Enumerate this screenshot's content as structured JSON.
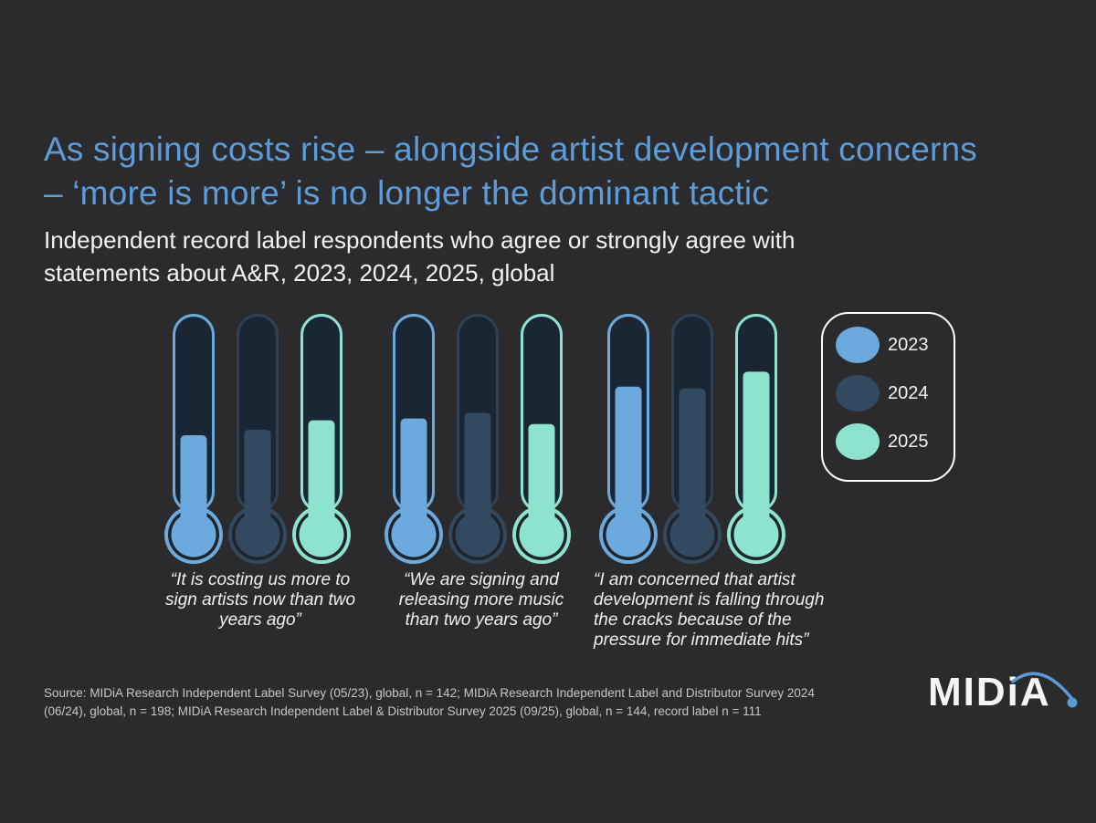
{
  "colors": {
    "background": "#2b2b2d",
    "title": "#5d9cd9",
    "text": "#f2f2f3",
    "source_text": "#c7c7ca",
    "year2023": "#6caade",
    "year2024": "#32495f",
    "year2024_border": "#2e4254",
    "year2025": "#8de3cd",
    "tube_interior": "#1b2634",
    "bulb_ring": "#1f242a",
    "legend_border": "#ffffff",
    "logo_accent": "#5b9bd5"
  },
  "header": {
    "title_line1": "As signing costs rise – alongside artist development concerns",
    "title_line2": "– ‘more is more’ is no longer the dominant tactic",
    "subtitle_line1": "Independent record label respondents who agree or strongly agree with",
    "subtitle_line2": "statements about A&R, 2023, 2024, 2025, global"
  },
  "chart_data": {
    "type": "bar",
    "variant": "thermometer-columns",
    "title": "Independent record label respondents who agree or strongly agree with statements about A&R, 2023, 2024, 2025, global",
    "categories": [
      "2023",
      "2024",
      "2025"
    ],
    "value_note": "No numeric data labels or axis shown; values estimated from thermometer fill heights as % of tube",
    "axis": "none",
    "legend_position": "right",
    "groups": [
      {
        "statement": "“It is costing us more to sign artists now than two years ago”",
        "quote_lines": [
          "“It is costing us more to",
          "sign artists now than two",
          "years ago”"
        ],
        "values_estimated_pct": [
          39,
          42,
          47
        ]
      },
      {
        "statement": "“We are signing and releasing more music than two years ago”",
        "quote_lines": [
          "“We are signing and",
          "releasing more music",
          "than two years ago”"
        ],
        "values_estimated_pct": [
          48,
          51,
          45
        ]
      },
      {
        "statement": "“I am concerned that artist development is falling through the cracks because of the pressure for immediate hits”",
        "quote_lines": [
          "“I am concerned that artist",
          "development is falling through",
          "the cracks because of the",
          "pressure for immediate hits”"
        ],
        "values_estimated_pct": [
          65,
          64,
          73
        ]
      }
    ]
  },
  "legend": {
    "items": [
      {
        "label": "2023",
        "color_key": "year2023"
      },
      {
        "label": "2024",
        "color_key": "year2024"
      },
      {
        "label": "2025",
        "color_key": "year2025"
      }
    ]
  },
  "footer": {
    "source_line1": "Source: MIDiA Research Independent Label Survey (05/23), global, n = 142; MIDiA Research Independent Label and Distributor Survey 2024",
    "source_line2": "(06/24), global, n = 198; MIDiA Research Independent Label & Distributor Survey 2025 (09/25), global, n = 144, record label n = 111",
    "logo_text": "MIDiA"
  }
}
